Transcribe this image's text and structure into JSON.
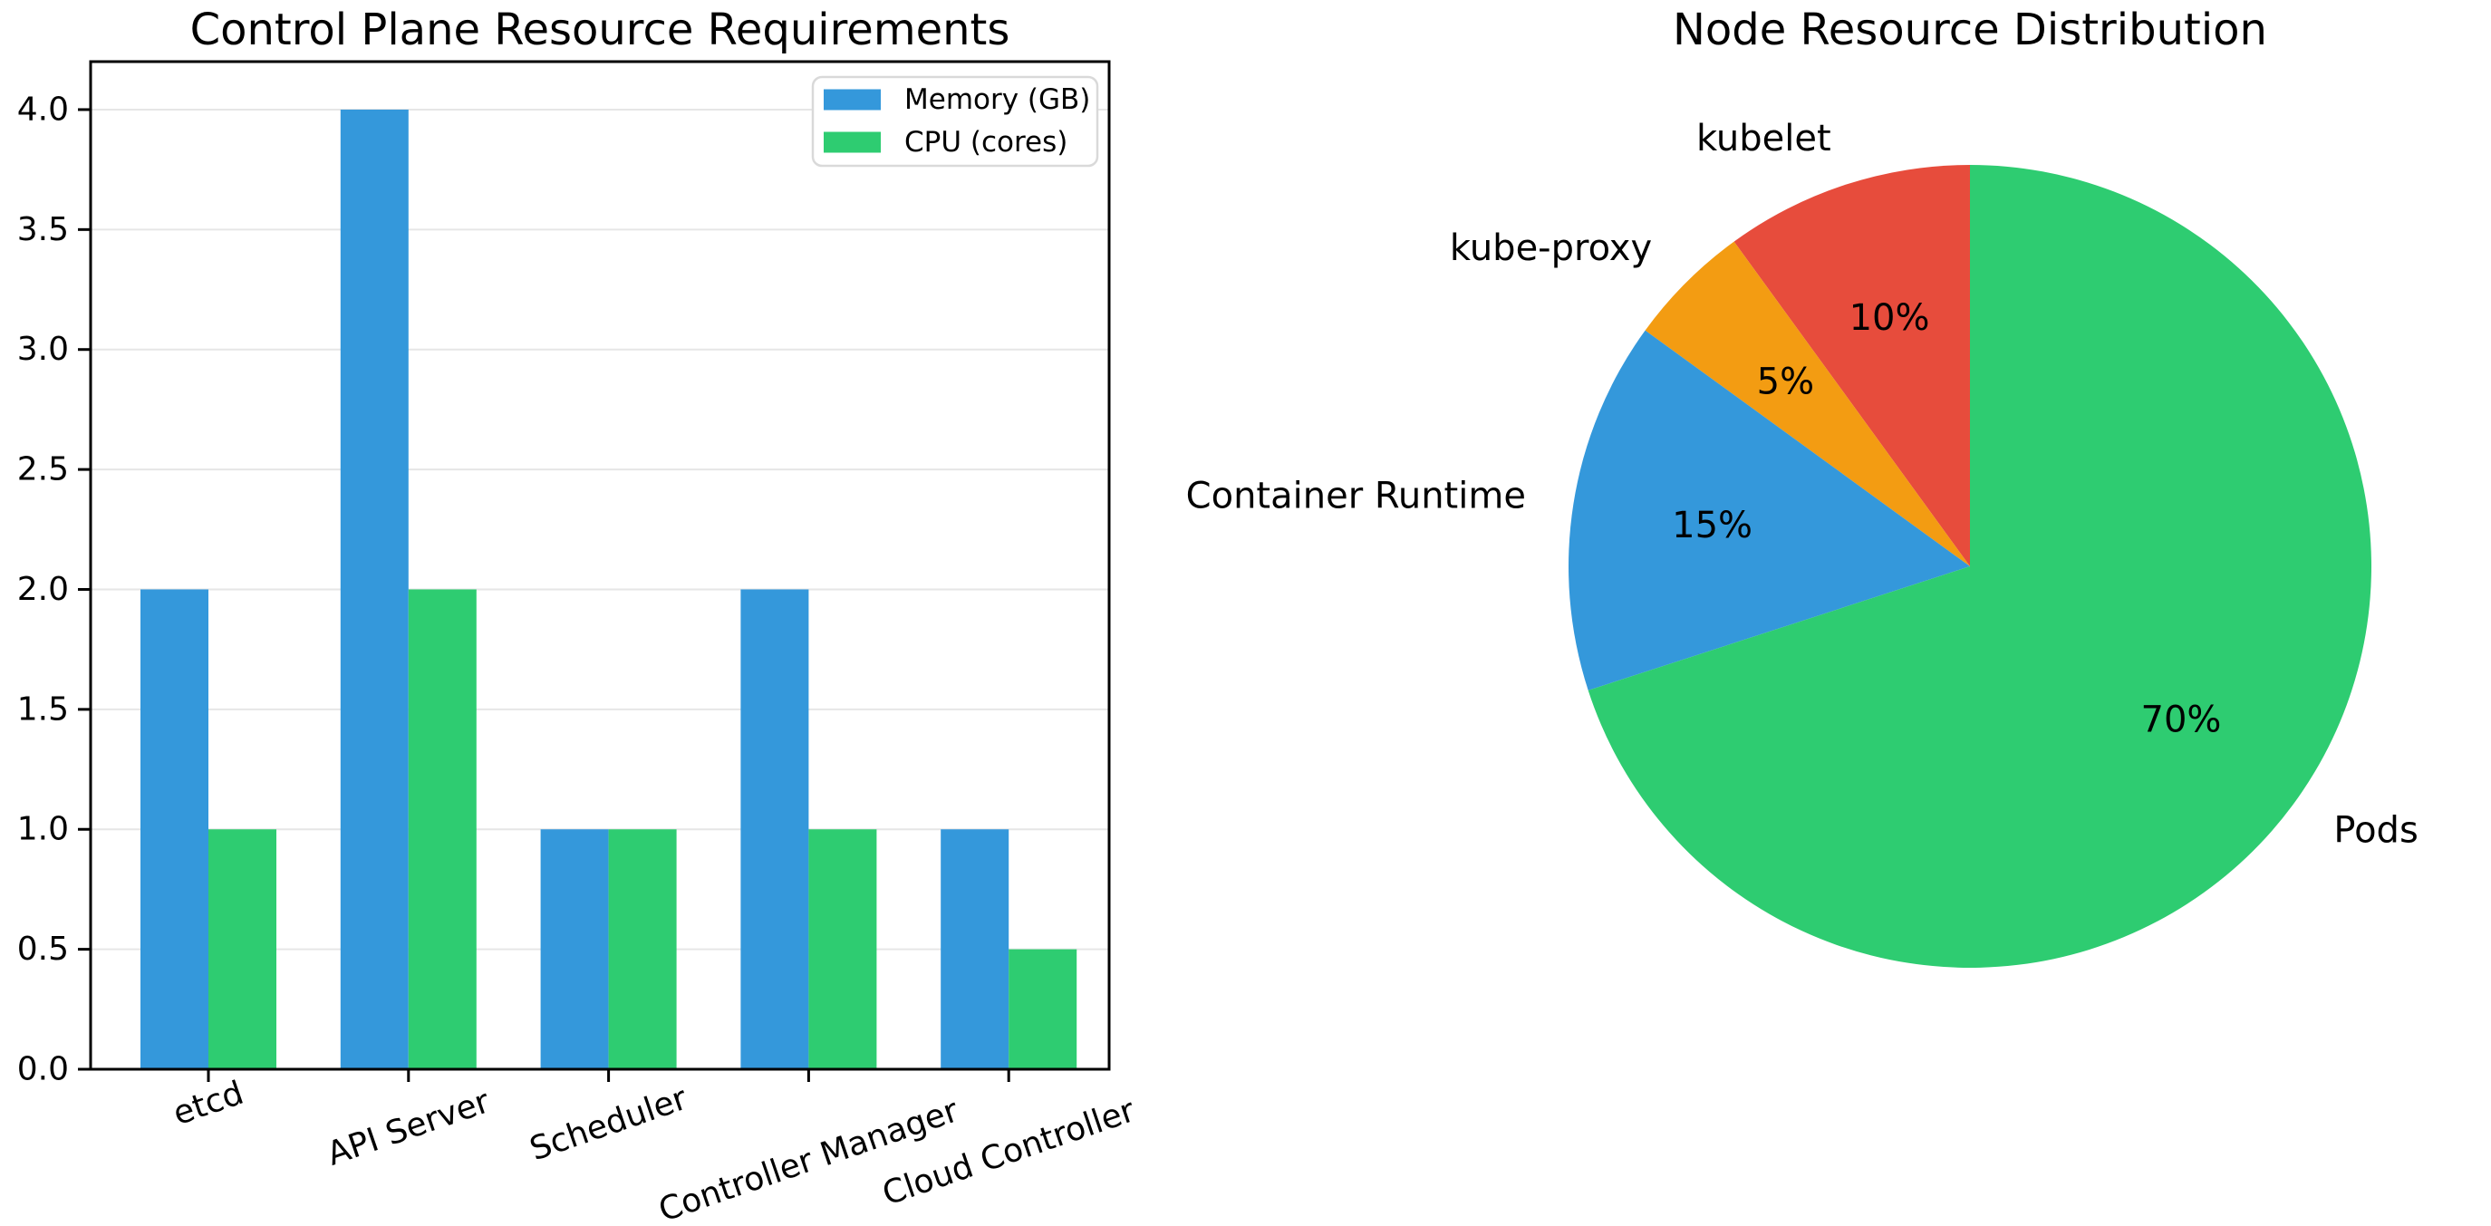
{
  "figure": {
    "background": "#ffffff",
    "text_color": "#000000",
    "grid_color": "#e6e6e6",
    "spine_color": "#000000",
    "legend_border_color": "#d9d9d9"
  },
  "chart_data": [
    {
      "type": "bar",
      "title": "Control Plane Resource Requirements",
      "categories": [
        "etcd",
        "API Server",
        "Scheduler",
        "Controller Manager",
        "Cloud Controller"
      ],
      "series": [
        {
          "name": "Memory (GB)",
          "color": "#3498db",
          "values": [
            2,
            4,
            1,
            2,
            1
          ]
        },
        {
          "name": "CPU (cores)",
          "color": "#2ecc71",
          "values": [
            1,
            2,
            1,
            1,
            0.5
          ]
        }
      ],
      "xlabel": "",
      "ylabel": "",
      "ylim": [
        0,
        4.2
      ],
      "yticks": [
        {
          "v": 0.0,
          "label": "0.0"
        },
        {
          "v": 0.5,
          "label": "0.5"
        },
        {
          "v": 1.0,
          "label": "1.0"
        },
        {
          "v": 1.5,
          "label": "1.5"
        },
        {
          "v": 2.0,
          "label": "2.0"
        },
        {
          "v": 2.5,
          "label": "2.5"
        },
        {
          "v": 3.0,
          "label": "3.0"
        },
        {
          "v": 3.5,
          "label": "3.5"
        },
        {
          "v": 4.0,
          "label": "4.0"
        }
      ],
      "grid": "horizontal",
      "legend_position": "upper-right",
      "xtick_label_rotation_deg": 19
    },
    {
      "type": "pie",
      "title": "Node Resource Distribution",
      "slices": [
        {
          "label": "kubelet",
          "value": 10,
          "pct_label": "10%",
          "color": "#e74c3c"
        },
        {
          "label": "kube-proxy",
          "value": 5,
          "pct_label": "5%",
          "color": "#f39c12"
        },
        {
          "label": "Container Runtime",
          "value": 15,
          "pct_label": "15%",
          "color": "#3498db"
        },
        {
          "label": "Pods",
          "value": 70,
          "pct_label": "70%",
          "color": "#2ecc71"
        }
      ],
      "start_angle": 90,
      "direction": "counterclockwise",
      "legend_position": "none"
    }
  ]
}
